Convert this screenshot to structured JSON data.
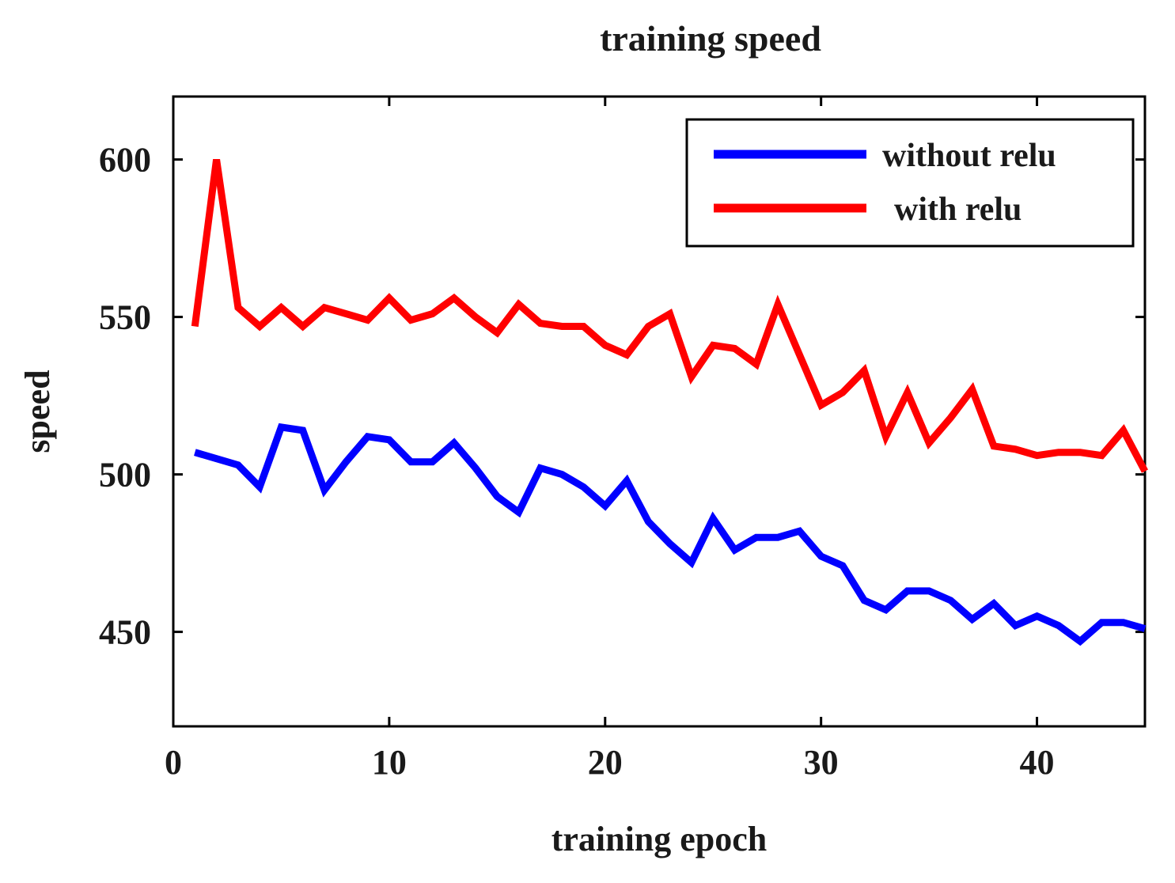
{
  "chart_data": {
    "type": "line",
    "title": "training speed",
    "xlabel": "training epoch",
    "ylabel": "speed",
    "xlim": [
      0,
      45
    ],
    "ylim": [
      420,
      620
    ],
    "xticks": [
      0,
      10,
      20,
      30,
      40
    ],
    "yticks": [
      450,
      500,
      550,
      600
    ],
    "grid": false,
    "legend_position": "top-right",
    "x": [
      1,
      2,
      3,
      4,
      5,
      6,
      7,
      8,
      9,
      10,
      11,
      12,
      13,
      14,
      15,
      16,
      17,
      18,
      19,
      20,
      21,
      22,
      23,
      24,
      25,
      26,
      27,
      28,
      29,
      30,
      31,
      32,
      33,
      34,
      35,
      36,
      37,
      38,
      39,
      40,
      41,
      42,
      43,
      44,
      45
    ],
    "series": [
      {
        "name": "without relu",
        "color": "#0000ff",
        "values": [
          507,
          505,
          503,
          496,
          515,
          514,
          495,
          504,
          512,
          511,
          504,
          504,
          510,
          502,
          493,
          488,
          502,
          500,
          496,
          490,
          498,
          485,
          478,
          472,
          486,
          476,
          480,
          480,
          482,
          474,
          471,
          460,
          457,
          463,
          463,
          460,
          454,
          459,
          452,
          455,
          452,
          447,
          453,
          453,
          451
        ]
      },
      {
        "name": "with relu",
        "color": "#ff0000",
        "values": [
          547,
          600,
          553,
          547,
          553,
          547,
          553,
          551,
          549,
          556,
          549,
          551,
          556,
          550,
          545,
          554,
          548,
          547,
          547,
          541,
          538,
          547,
          551,
          531,
          541,
          540,
          535,
          554,
          538,
          522,
          526,
          533,
          512,
          526,
          510,
          518,
          527,
          509,
          508,
          506,
          507,
          507,
          506,
          514,
          501
        ]
      }
    ]
  }
}
